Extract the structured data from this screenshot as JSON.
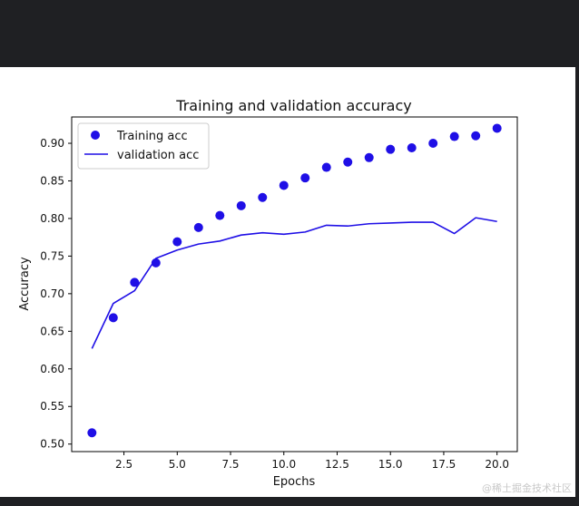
{
  "chart_data": {
    "type": "line",
    "title": "Training and validation accuracy",
    "xlabel": "Epochs",
    "ylabel": "Accuracy",
    "xlim": [
      0.05,
      20.95
    ],
    "ylim": [
      0.49,
      0.935
    ],
    "xticks": [
      2.5,
      5.0,
      7.5,
      10.0,
      12.5,
      15.0,
      17.5,
      20.0
    ],
    "xtick_labels": [
      "2.5",
      "5.0",
      "7.5",
      "10.0",
      "12.5",
      "15.0",
      "17.5",
      "20.0"
    ],
    "yticks": [
      0.5,
      0.55,
      0.6,
      0.65,
      0.7,
      0.75,
      0.8,
      0.85,
      0.9
    ],
    "ytick_labels": [
      "0.50",
      "0.55",
      "0.60",
      "0.65",
      "0.70",
      "0.75",
      "0.80",
      "0.85",
      "0.90"
    ],
    "grid": false,
    "legend_position": "top-left",
    "x": [
      1,
      2,
      3,
      4,
      5,
      6,
      7,
      8,
      9,
      10,
      11,
      12,
      13,
      14,
      15,
      16,
      17,
      18,
      19,
      20
    ],
    "series": [
      {
        "name": "Training acc",
        "style": "points",
        "color": "#1f0fe6",
        "values": [
          0.515,
          0.668,
          0.715,
          0.741,
          0.769,
          0.788,
          0.804,
          0.817,
          0.828,
          0.844,
          0.854,
          0.868,
          0.875,
          0.881,
          0.892,
          0.894,
          0.9,
          0.909,
          0.91,
          0.92
        ]
      },
      {
        "name": "validation acc",
        "style": "line",
        "color": "#1f0fe6",
        "values": [
          0.627,
          0.687,
          0.704,
          0.747,
          0.758,
          0.766,
          0.77,
          0.778,
          0.781,
          0.779,
          0.782,
          0.791,
          0.79,
          0.793,
          0.794,
          0.795,
          0.795,
          0.78,
          0.801,
          0.796
        ]
      }
    ]
  },
  "watermark": "@稀土掘金技术社区"
}
